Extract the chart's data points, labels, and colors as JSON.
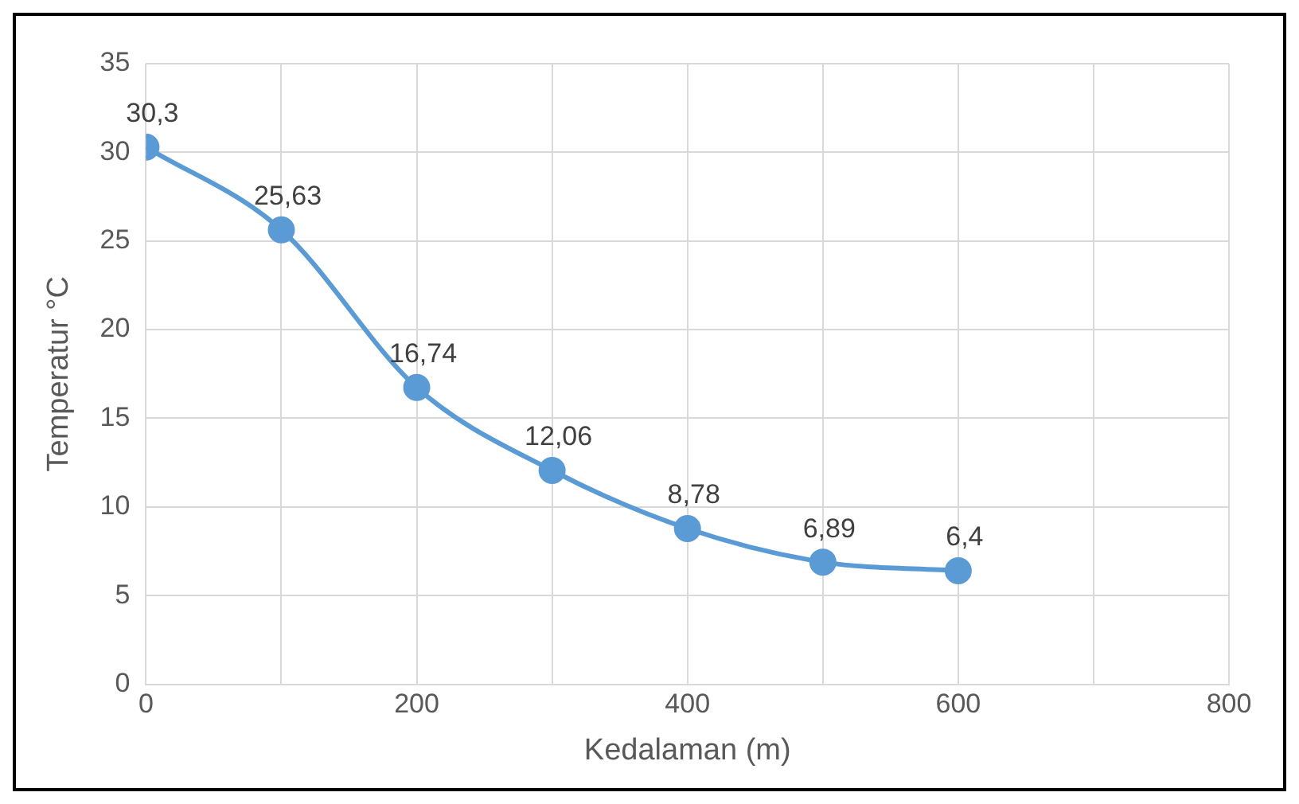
{
  "chart_data": {
    "type": "line",
    "xlabel": "Kedalaman (m)",
    "ylabel": "Temperatur °C",
    "x": [
      0,
      100,
      200,
      300,
      400,
      500,
      600
    ],
    "series": [
      {
        "color": "#5b9bd5",
        "values": [
          30.3,
          25.63,
          16.74,
          12.06,
          8.78,
          6.89,
          6.4
        ],
        "value_labels": [
          "30,3",
          "25,63",
          "16,74",
          "12,06",
          "8,78",
          "6,89",
          "6,4"
        ]
      }
    ],
    "xlim": [
      0,
      800
    ],
    "xticks": [
      0,
      {
        "value": 100,
        "label": null
      },
      200,
      {
        "value": 300,
        "label": null
      },
      400,
      {
        "value": 500,
        "label": null
      },
      600,
      {
        "value": 700,
        "label": null
      },
      800
    ],
    "ylim": [
      0,
      35
    ],
    "yticks": [
      0,
      5,
      10,
      15,
      20,
      25,
      30,
      35
    ],
    "grid": true,
    "legend": false,
    "marker": "circle",
    "line_style": "solid"
  }
}
